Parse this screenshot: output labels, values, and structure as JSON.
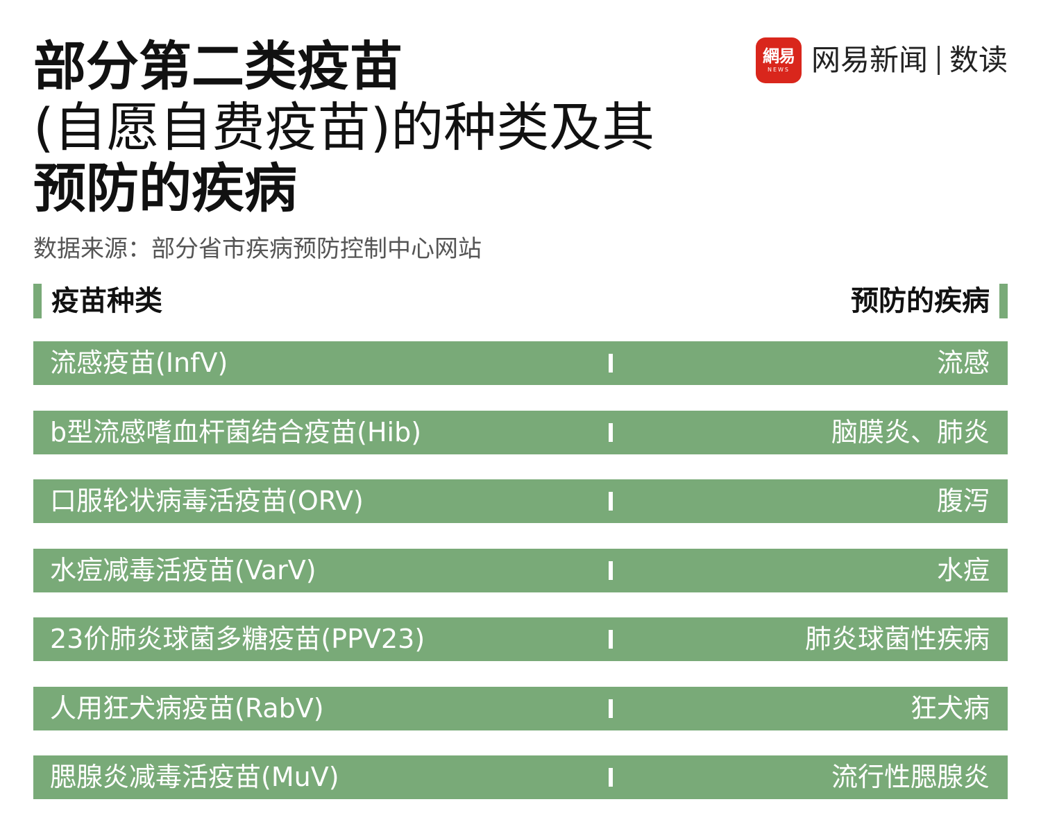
{
  "title": {
    "line1": "部分第二类疫苗",
    "line2": "(自愿自费疫苗)的种类及其",
    "line3": "预防的疾病"
  },
  "source": "数据来源：部分省市疾病预防控制中心网站",
  "logo": {
    "badge_text": "網易",
    "badge_sub": "NEWS",
    "name": "网易新闻",
    "sub": "数读",
    "badge_color": "#d9261c"
  },
  "table": {
    "header_left": "疫苗种类",
    "header_right": "预防的疾病",
    "accent_color": "#79aa78",
    "rows": [
      {
        "vaccine": "流感疫苗(InfV)",
        "disease": "流感"
      },
      {
        "vaccine": "b型流感嗜血杆菌结合疫苗(Hib)",
        "disease": "脑膜炎、肺炎"
      },
      {
        "vaccine": "口服轮状病毒活疫苗(ORV)",
        "disease": "腹泻"
      },
      {
        "vaccine": "水痘减毒活疫苗(VarV)",
        "disease": "水痘"
      },
      {
        "vaccine": "23价肺炎球菌多糖疫苗(PPV23)",
        "disease": "肺炎球菌性疾病"
      },
      {
        "vaccine": "人用狂犬病疫苗(RabV)",
        "disease": "狂犬病"
      },
      {
        "vaccine": "腮腺炎减毒活疫苗(MuV)",
        "disease": "流行性腮腺炎"
      }
    ]
  }
}
